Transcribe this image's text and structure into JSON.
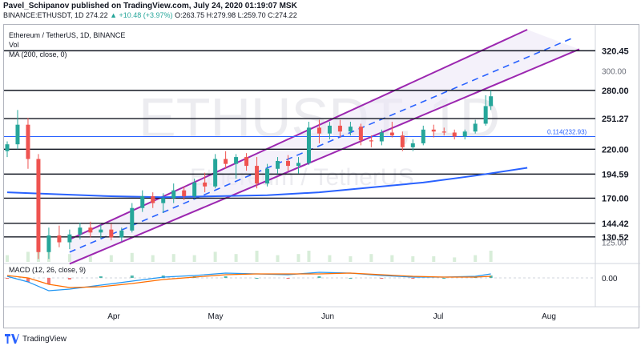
{
  "header": {
    "publisher_line": "Pavel_Schipanov published on TradingView.com, July 24, 2020 01:19:07 MSK",
    "symbol": "BINANCE:ETHUSDT, 1D",
    "last_price": "274.22",
    "change": "▲ +10.48 (+3.97%)",
    "ohlc": "O:263.75 H:279.98 L:259.70 C:274.22"
  },
  "legend": {
    "title": "Ethereum / TetherUS, 1D, BINANCE",
    "vol": "Vol",
    "ma": "MA (200, close, 0)"
  },
  "watermark": {
    "ticker": "ETHUSDT, 1D",
    "name": "Ethereum / TetherUS"
  },
  "macd_label": "MACD (12, 26, close, 9)",
  "footer": {
    "brand": "TradingView"
  },
  "colors": {
    "up": "#26a69a",
    "down": "#ef5350",
    "channel": "#9c27b0",
    "channel_mid": "#2962ff",
    "ma": "#2962ff",
    "fib": "#2962ff",
    "level": "#131722"
  },
  "chart_data": {
    "type": "candlestick",
    "symbol": "ETHUSDT",
    "timeframe": "1D",
    "x_axis": {
      "labels": [
        "Apr",
        "May",
        "Jun",
        "Jul",
        "Aug"
      ]
    },
    "y_axis": {
      "range": [
        105,
        342
      ],
      "tick_labels": [
        "125.00",
        "300.00"
      ],
      "level_labels": [
        "320.45",
        "280.00",
        "251.27",
        "220.00",
        "194.59",
        "170.00",
        "144.42",
        "130.52"
      ],
      "levels": [
        320.45,
        280.0,
        251.27,
        220.0,
        194.59,
        170.0,
        144.42,
        130.52
      ]
    },
    "fib_level": {
      "label": "0.114(232.93)",
      "value": 232.93
    },
    "ma200": [
      {
        "day": 0,
        "value": 176
      },
      {
        "day": 20,
        "value": 174
      },
      {
        "day": 40,
        "value": 172
      },
      {
        "day": 60,
        "value": 171
      },
      {
        "day": 80,
        "value": 172
      },
      {
        "day": 100,
        "value": 173
      },
      {
        "day": 120,
        "value": 176
      },
      {
        "day": 140,
        "value": 181
      },
      {
        "day": 160,
        "value": 186
      },
      {
        "day": 180,
        "value": 193
      },
      {
        "day": 200,
        "value": 201
      }
    ],
    "channel": {
      "upper": [
        {
          "day": 24,
          "value": 128
        },
        {
          "day": 200,
          "value": 342
        }
      ],
      "middle": [
        {
          "day": 24,
          "value": 115
        },
        {
          "day": 217,
          "value": 333
        }
      ],
      "lower": [
        {
          "day": 24,
          "value": 103
        },
        {
          "day": 220,
          "value": 322
        }
      ]
    },
    "candles": [
      {
        "day": 0,
        "o": 218,
        "h": 228,
        "l": 212,
        "c": 225
      },
      {
        "day": 4,
        "o": 225,
        "h": 260,
        "l": 220,
        "c": 245
      },
      {
        "day": 8,
        "o": 245,
        "h": 252,
        "l": 200,
        "c": 210
      },
      {
        "day": 12,
        "o": 210,
        "h": 215,
        "l": 108,
        "c": 115
      },
      {
        "day": 16,
        "o": 115,
        "h": 140,
        "l": 108,
        "c": 132
      },
      {
        "day": 20,
        "o": 132,
        "h": 142,
        "l": 120,
        "c": 125
      },
      {
        "day": 24,
        "o": 125,
        "h": 138,
        "l": 118,
        "c": 133
      },
      {
        "day": 28,
        "o": 133,
        "h": 145,
        "l": 128,
        "c": 140
      },
      {
        "day": 32,
        "o": 140,
        "h": 146,
        "l": 130,
        "c": 135
      },
      {
        "day": 36,
        "o": 135,
        "h": 143,
        "l": 129,
        "c": 138
      },
      {
        "day": 40,
        "o": 138,
        "h": 144,
        "l": 127,
        "c": 130
      },
      {
        "day": 44,
        "o": 130,
        "h": 140,
        "l": 126,
        "c": 137
      },
      {
        "day": 48,
        "o": 137,
        "h": 165,
        "l": 135,
        "c": 160
      },
      {
        "day": 52,
        "o": 160,
        "h": 178,
        "l": 156,
        "c": 172
      },
      {
        "day": 56,
        "o": 172,
        "h": 176,
        "l": 160,
        "c": 165
      },
      {
        "day": 60,
        "o": 165,
        "h": 175,
        "l": 155,
        "c": 170
      },
      {
        "day": 64,
        "o": 170,
        "h": 185,
        "l": 165,
        "c": 178
      },
      {
        "day": 68,
        "o": 178,
        "h": 182,
        "l": 168,
        "c": 172
      },
      {
        "day": 72,
        "o": 172,
        "h": 190,
        "l": 170,
        "c": 186
      },
      {
        "day": 76,
        "o": 186,
        "h": 196,
        "l": 176,
        "c": 182
      },
      {
        "day": 80,
        "o": 182,
        "h": 215,
        "l": 180,
        "c": 210
      },
      {
        "day": 84,
        "o": 210,
        "h": 218,
        "l": 200,
        "c": 205
      },
      {
        "day": 88,
        "o": 205,
        "h": 215,
        "l": 190,
        "c": 212
      },
      {
        "day": 92,
        "o": 212,
        "h": 216,
        "l": 198,
        "c": 203
      },
      {
        "day": 96,
        "o": 203,
        "h": 212,
        "l": 180,
        "c": 185
      },
      {
        "day": 100,
        "o": 185,
        "h": 205,
        "l": 182,
        "c": 200
      },
      {
        "day": 104,
        "o": 200,
        "h": 212,
        "l": 195,
        "c": 208
      },
      {
        "day": 108,
        "o": 208,
        "h": 214,
        "l": 198,
        "c": 203
      },
      {
        "day": 112,
        "o": 203,
        "h": 212,
        "l": 195,
        "c": 206
      },
      {
        "day": 116,
        "o": 206,
        "h": 248,
        "l": 204,
        "c": 242
      },
      {
        "day": 120,
        "o": 242,
        "h": 250,
        "l": 226,
        "c": 236
      },
      {
        "day": 124,
        "o": 236,
        "h": 248,
        "l": 230,
        "c": 244
      },
      {
        "day": 128,
        "o": 244,
        "h": 250,
        "l": 232,
        "c": 238
      },
      {
        "day": 132,
        "o": 238,
        "h": 248,
        "l": 234,
        "c": 243
      },
      {
        "day": 136,
        "o": 243,
        "h": 246,
        "l": 224,
        "c": 229
      },
      {
        "day": 140,
        "o": 229,
        "h": 234,
        "l": 222,
        "c": 228
      },
      {
        "day": 144,
        "o": 228,
        "h": 240,
        "l": 224,
        "c": 237
      },
      {
        "day": 148,
        "o": 237,
        "h": 248,
        "l": 232,
        "c": 234
      },
      {
        "day": 152,
        "o": 234,
        "h": 238,
        "l": 218,
        "c": 222
      },
      {
        "day": 156,
        "o": 222,
        "h": 230,
        "l": 218,
        "c": 226
      },
      {
        "day": 160,
        "o": 226,
        "h": 244,
        "l": 224,
        "c": 240
      },
      {
        "day": 164,
        "o": 240,
        "h": 245,
        "l": 232,
        "c": 238
      },
      {
        "day": 168,
        "o": 238,
        "h": 242,
        "l": 234,
        "c": 237
      },
      {
        "day": 172,
        "o": 237,
        "h": 240,
        "l": 230,
        "c": 233
      },
      {
        "day": 176,
        "o": 233,
        "h": 240,
        "l": 230,
        "c": 238
      },
      {
        "day": 180,
        "o": 238,
        "h": 250,
        "l": 236,
        "c": 246
      },
      {
        "day": 184,
        "o": 246,
        "h": 275,
        "l": 244,
        "c": 264
      },
      {
        "day": 186,
        "o": 264,
        "h": 280,
        "l": 260,
        "c": 274
      }
    ],
    "volume": [
      {
        "day": 0,
        "v": 12
      },
      {
        "day": 8,
        "v": 18
      },
      {
        "day": 12,
        "v": 30
      },
      {
        "day": 16,
        "v": 22
      },
      {
        "day": 24,
        "v": 14
      },
      {
        "day": 32,
        "v": 10
      },
      {
        "day": 40,
        "v": 12
      },
      {
        "day": 48,
        "v": 16
      },
      {
        "day": 56,
        "v": 12
      },
      {
        "day": 64,
        "v": 14
      },
      {
        "day": 72,
        "v": 12
      },
      {
        "day": 80,
        "v": 18
      },
      {
        "day": 88,
        "v": 14
      },
      {
        "day": 96,
        "v": 20
      },
      {
        "day": 104,
        "v": 12
      },
      {
        "day": 112,
        "v": 14
      },
      {
        "day": 116,
        "v": 20
      },
      {
        "day": 124,
        "v": 12
      },
      {
        "day": 132,
        "v": 10
      },
      {
        "day": 140,
        "v": 14
      },
      {
        "day": 148,
        "v": 12
      },
      {
        "day": 156,
        "v": 10
      },
      {
        "day": 164,
        "v": 10
      },
      {
        "day": 172,
        "v": 8
      },
      {
        "day": 180,
        "v": 12
      },
      {
        "day": 186,
        "v": 20
      }
    ],
    "macd": {
      "zero_label": "0.00",
      "macd_line": [
        {
          "day": 0,
          "v": 0.2
        },
        {
          "day": 8,
          "v": -0.5
        },
        {
          "day": 16,
          "v": -1.6
        },
        {
          "day": 24,
          "v": -1.4
        },
        {
          "day": 36,
          "v": -0.9
        },
        {
          "day": 48,
          "v": -0.4
        },
        {
          "day": 60,
          "v": 0.1
        },
        {
          "day": 72,
          "v": 0.3
        },
        {
          "day": 84,
          "v": 0.6
        },
        {
          "day": 96,
          "v": 0.5
        },
        {
          "day": 108,
          "v": 0.4
        },
        {
          "day": 120,
          "v": 0.7
        },
        {
          "day": 132,
          "v": 0.6
        },
        {
          "day": 144,
          "v": 0.3
        },
        {
          "day": 156,
          "v": 0.1
        },
        {
          "day": 168,
          "v": 0.1
        },
        {
          "day": 180,
          "v": 0.2
        },
        {
          "day": 186,
          "v": 0.5
        }
      ],
      "signal_line": [
        {
          "day": 0,
          "v": 0.3
        },
        {
          "day": 8,
          "v": 0.0
        },
        {
          "day": 16,
          "v": -0.8
        },
        {
          "day": 24,
          "v": -1.2
        },
        {
          "day": 36,
          "v": -1.1
        },
        {
          "day": 48,
          "v": -0.7
        },
        {
          "day": 60,
          "v": -0.2
        },
        {
          "day": 72,
          "v": 0.1
        },
        {
          "day": 84,
          "v": 0.4
        },
        {
          "day": 96,
          "v": 0.5
        },
        {
          "day": 108,
          "v": 0.5
        },
        {
          "day": 120,
          "v": 0.5
        },
        {
          "day": 132,
          "v": 0.6
        },
        {
          "day": 144,
          "v": 0.4
        },
        {
          "day": 156,
          "v": 0.2
        },
        {
          "day": 168,
          "v": 0.1
        },
        {
          "day": 180,
          "v": 0.1
        },
        {
          "day": 186,
          "v": 0.2
        }
      ]
    }
  }
}
